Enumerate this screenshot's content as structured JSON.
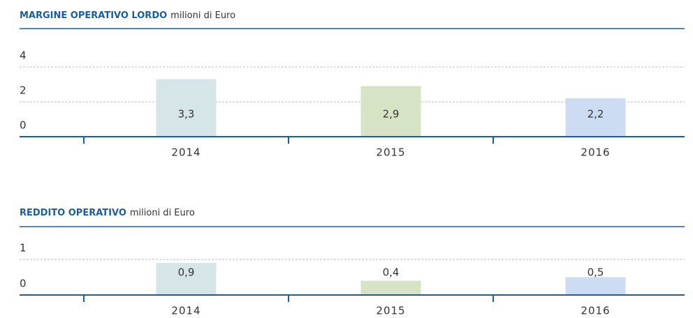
{
  "chart_data": [
    {
      "type": "bar",
      "title": "MARGINE OPERATIVO LORDO",
      "subtitle": "milioni di Euro",
      "categories": [
        "2014",
        "2015",
        "2016"
      ],
      "values": [
        3.3,
        2.9,
        2.2
      ],
      "value_labels": [
        "3,3",
        "2,9",
        "2,2"
      ],
      "colors": [
        "#d6e6e8",
        "#d6e4c5",
        "#cbdcf3"
      ],
      "ylim": [
        0,
        4
      ],
      "yticks": [
        0,
        2,
        4
      ],
      "grid": true
    },
    {
      "type": "bar",
      "title": "REDDITO OPERATIVO",
      "subtitle": "milioni di Euro",
      "categories": [
        "2014",
        "2015",
        "2016"
      ],
      "values": [
        0.9,
        0.4,
        0.5
      ],
      "value_labels": [
        "0,9",
        "0,4",
        "0,5"
      ],
      "colors": [
        "#d6e6e8",
        "#d6e4c5",
        "#cbdcf3"
      ],
      "ylim": [
        0,
        1
      ],
      "yticks": [
        0,
        1
      ],
      "grid": true
    }
  ]
}
